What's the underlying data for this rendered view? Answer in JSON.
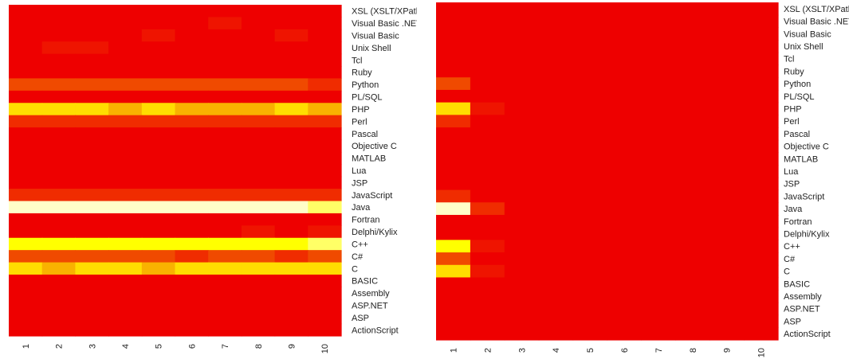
{
  "chart_data": [
    {
      "type": "heatmap",
      "x_tick_labels": [
        "1",
        "2",
        "3",
        "4",
        "5",
        "6",
        "7",
        "8",
        "9",
        "10"
      ],
      "row_labels": [
        "XSL (XSLT/XPath)",
        "Visual Basic .NET",
        "Visual Basic",
        "Unix Shell",
        "Tcl",
        "Ruby",
        "Python",
        "PL/SQL",
        "PHP",
        "Perl",
        "Pascal",
        "Objective C",
        "MATLAB",
        "Lua",
        "JSP",
        "JavaScript",
        "Java",
        "Fortran",
        "Delphi/Kylix",
        "C++",
        "C#",
        "C",
        "BASIC",
        "Assembly",
        "ASP.NET",
        "ASP",
        "ActionScript"
      ],
      "color_scale": [
        "#EE0000",
        "#EF1400",
        "#F02C00",
        "#F04A00",
        "#F9B200",
        "#FFDD00",
        "#FFFF00",
        "#FFFF66",
        "#FFFFC8"
      ],
      "values": [
        [
          0,
          0,
          0,
          0,
          0,
          0,
          0,
          0,
          0,
          0
        ],
        [
          0,
          0,
          0,
          0,
          0,
          0,
          1,
          0,
          0,
          0
        ],
        [
          0,
          0,
          0,
          0,
          1,
          0,
          0,
          0,
          1,
          0
        ],
        [
          0,
          1,
          1,
          0,
          0,
          0,
          0,
          0,
          0,
          0
        ],
        [
          0,
          0,
          0,
          0,
          0,
          0,
          0,
          0,
          0,
          0
        ],
        [
          0,
          0,
          0,
          0,
          0,
          0,
          0,
          0,
          0,
          0
        ],
        [
          3,
          3,
          3,
          3,
          3,
          3,
          3,
          3,
          3,
          2
        ],
        [
          0,
          0,
          0,
          0,
          0,
          0,
          0,
          0,
          0,
          0
        ],
        [
          5,
          5,
          5,
          4,
          5,
          4,
          4,
          4,
          5,
          4
        ],
        [
          2,
          2,
          2,
          2,
          2,
          2,
          2,
          2,
          2,
          2
        ],
        [
          0,
          0,
          0,
          0,
          0,
          0,
          0,
          0,
          0,
          0
        ],
        [
          0,
          0,
          0,
          0,
          0,
          0,
          0,
          0,
          0,
          0
        ],
        [
          0,
          0,
          0,
          0,
          0,
          0,
          0,
          0,
          0,
          0
        ],
        [
          0,
          0,
          0,
          0,
          0,
          0,
          0,
          0,
          0,
          0
        ],
        [
          0,
          0,
          0,
          0,
          0,
          0,
          0,
          0,
          0,
          0
        ],
        [
          2,
          2,
          2,
          2,
          2,
          2,
          2,
          2,
          2,
          2
        ],
        [
          8,
          8,
          8,
          8,
          8,
          8,
          8,
          8,
          8,
          7
        ],
        [
          0,
          0,
          0,
          0,
          0,
          0,
          0,
          0,
          0,
          0
        ],
        [
          0,
          0,
          0,
          0,
          0,
          0,
          0,
          1,
          0,
          1
        ],
        [
          6,
          6,
          6,
          6,
          6,
          6,
          6,
          6,
          6,
          7
        ],
        [
          3,
          3,
          3,
          3,
          3,
          2,
          3,
          3,
          2,
          3
        ],
        [
          5,
          4,
          5,
          5,
          4,
          5,
          5,
          5,
          5,
          5
        ],
        [
          0,
          0,
          0,
          0,
          0,
          0,
          0,
          0,
          0,
          0
        ],
        [
          0,
          0,
          0,
          0,
          0,
          0,
          0,
          0,
          0,
          0
        ],
        [
          0,
          0,
          0,
          0,
          0,
          0,
          0,
          0,
          0,
          0
        ],
        [
          0,
          0,
          0,
          0,
          0,
          0,
          0,
          0,
          0,
          0
        ],
        [
          0,
          0,
          0,
          0,
          0,
          0,
          0,
          0,
          0,
          0
        ]
      ]
    },
    {
      "type": "heatmap",
      "x_tick_labels": [
        "1",
        "2",
        "3",
        "4",
        "5",
        "6",
        "7",
        "8",
        "9",
        "10"
      ],
      "row_labels": [
        "XSL (XSLT/XPath)",
        "Visual Basic .NET",
        "Visual Basic",
        "Unix Shell",
        "Tcl",
        "Ruby",
        "Python",
        "PL/SQL",
        "PHP",
        "Perl",
        "Pascal",
        "Objective C",
        "MATLAB",
        "Lua",
        "JSP",
        "JavaScript",
        "Java",
        "Fortran",
        "Delphi/Kylix",
        "C++",
        "C#",
        "C",
        "BASIC",
        "Assembly",
        "ASP.NET",
        "ASP",
        "ActionScript"
      ],
      "color_scale": [
        "#EE0000",
        "#EF1400",
        "#F02C00",
        "#F04A00",
        "#F9B200",
        "#FFDD00",
        "#FFFF00",
        "#FFFF66",
        "#FFFFC8"
      ],
      "values": [
        [
          0,
          0,
          0,
          0,
          0,
          0,
          0,
          0,
          0,
          0
        ],
        [
          0,
          0,
          0,
          0,
          0,
          0,
          0,
          0,
          0,
          0
        ],
        [
          0,
          0,
          0,
          0,
          0,
          0,
          0,
          0,
          0,
          0
        ],
        [
          0,
          0,
          0,
          0,
          0,
          0,
          0,
          0,
          0,
          0
        ],
        [
          0,
          0,
          0,
          0,
          0,
          0,
          0,
          0,
          0,
          0
        ],
        [
          0,
          0,
          0,
          0,
          0,
          0,
          0,
          0,
          0,
          0
        ],
        [
          3,
          0,
          0,
          0,
          0,
          0,
          0,
          0,
          0,
          0
        ],
        [
          0,
          0,
          0,
          0,
          0,
          0,
          0,
          0,
          0,
          0
        ],
        [
          5,
          1,
          0,
          0,
          0,
          0,
          0,
          0,
          0,
          0
        ],
        [
          2,
          0,
          0,
          0,
          0,
          0,
          0,
          0,
          0,
          0
        ],
        [
          0,
          0,
          0,
          0,
          0,
          0,
          0,
          0,
          0,
          0
        ],
        [
          0,
          0,
          0,
          0,
          0,
          0,
          0,
          0,
          0,
          0
        ],
        [
          0,
          0,
          0,
          0,
          0,
          0,
          0,
          0,
          0,
          0
        ],
        [
          0,
          0,
          0,
          0,
          0,
          0,
          0,
          0,
          0,
          0
        ],
        [
          0,
          0,
          0,
          0,
          0,
          0,
          0,
          0,
          0,
          0
        ],
        [
          2,
          0,
          0,
          0,
          0,
          0,
          0,
          0,
          0,
          0
        ],
        [
          8,
          2,
          0,
          0,
          0,
          0,
          0,
          0,
          0,
          0
        ],
        [
          0,
          0,
          0,
          0,
          0,
          0,
          0,
          0,
          0,
          0
        ],
        [
          0,
          0,
          0,
          0,
          0,
          0,
          0,
          0,
          0,
          0
        ],
        [
          6,
          1,
          0,
          0,
          0,
          0,
          0,
          0,
          0,
          0
        ],
        [
          3,
          0,
          0,
          0,
          0,
          0,
          0,
          0,
          0,
          0
        ],
        [
          5,
          1,
          0,
          0,
          0,
          0,
          0,
          0,
          0,
          0
        ],
        [
          0,
          0,
          0,
          0,
          0,
          0,
          0,
          0,
          0,
          0
        ],
        [
          0,
          0,
          0,
          0,
          0,
          0,
          0,
          0,
          0,
          0
        ],
        [
          0,
          0,
          0,
          0,
          0,
          0,
          0,
          0,
          0,
          0
        ],
        [
          0,
          0,
          0,
          0,
          0,
          0,
          0,
          0,
          0,
          0
        ],
        [
          0,
          0,
          0,
          0,
          0,
          0,
          0,
          0,
          0,
          0
        ]
      ]
    }
  ]
}
